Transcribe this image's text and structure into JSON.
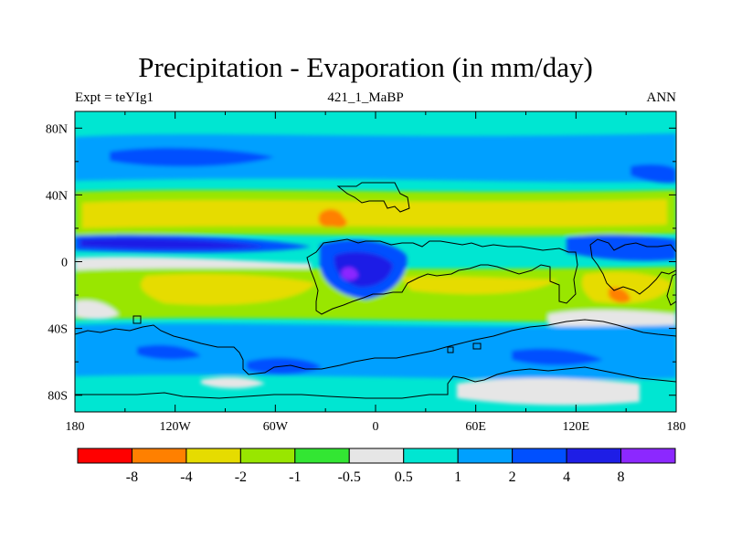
{
  "title": "Precipitation - Evaporation (in mm/day)",
  "subtitle_left": "Expt = teYIg1",
  "subtitle_center": "421_1_MaBP",
  "subtitle_right": "ANN",
  "x_ticks": [
    "180",
    "120W",
    "60W",
    "0",
    "60E",
    "120E",
    "180"
  ],
  "y_ticks": [
    "80N",
    "40N",
    "0",
    "40S",
    "80S"
  ],
  "colorbar": {
    "colors": [
      "#ff0000",
      "#ff8000",
      "#e6dc00",
      "#99e600",
      "#33e633",
      "#e6e6e6",
      "#00e6d2",
      "#00a0ff",
      "#0050ff",
      "#1e1ee6",
      "#8c28ff"
    ],
    "labels": [
      "-8",
      "-4",
      "-2",
      "-1",
      "-0.5",
      "0.5",
      "1",
      "2",
      "4",
      "8"
    ]
  },
  "chart_data": {
    "type": "heatmap",
    "title": "Precipitation - Evaporation (in mm/day)",
    "units": "mm/day",
    "experiment": "teYIg1",
    "period": "421_1_MaBP",
    "season": "ANN",
    "x_range": [
      -180,
      180
    ],
    "y_range": [
      -90,
      90
    ],
    "levels": [
      -8,
      -4,
      -2,
      -1,
      -0.5,
      0.5,
      1,
      2,
      4,
      8
    ],
    "zonal_bands": [
      {
        "lat": [
          70,
          90
        ],
        "level": "0.5 to 1"
      },
      {
        "lat": [
          50,
          70
        ],
        "level": "1 to 2"
      },
      {
        "lat": [
          38,
          50
        ],
        "level": "0.5 to 1"
      },
      {
        "lat": [
          15,
          38
        ],
        "level": "-2 to -1"
      },
      {
        "lat": [
          3,
          15
        ],
        "level": "2 to 4"
      },
      {
        "lat": [
          -5,
          3
        ],
        "level": "-0.5 to 0.5"
      },
      {
        "lat": [
          -35,
          -5
        ],
        "level": "-2 to -1"
      },
      {
        "lat": [
          -48,
          -35
        ],
        "level": "0.5 to 1"
      },
      {
        "lat": [
          -70,
          -48
        ],
        "level": "1 to 2"
      },
      {
        "lat": [
          -90,
          -70
        ],
        "level": "0.5 to 1"
      }
    ],
    "patches": [
      {
        "lon": [
          -180,
          -110
        ],
        "lat": [
          4,
          14
        ],
        "level": "4 to 8"
      },
      {
        "lon": [
          -40,
          10
        ],
        "lat": [
          -10,
          15
        ],
        "level": "8+"
      },
      {
        "lon": [
          -30,
          -20
        ],
        "lat": [
          22,
          30
        ],
        "level": "-8 to -4"
      },
      {
        "lon": [
          120,
          130
        ],
        "lat": [
          -28,
          -18
        ],
        "level": "-8 to -4"
      },
      {
        "lon": [
          120,
          180
        ],
        "lat": [
          0,
          15
        ],
        "level": "4 to 8"
      }
    ]
  }
}
